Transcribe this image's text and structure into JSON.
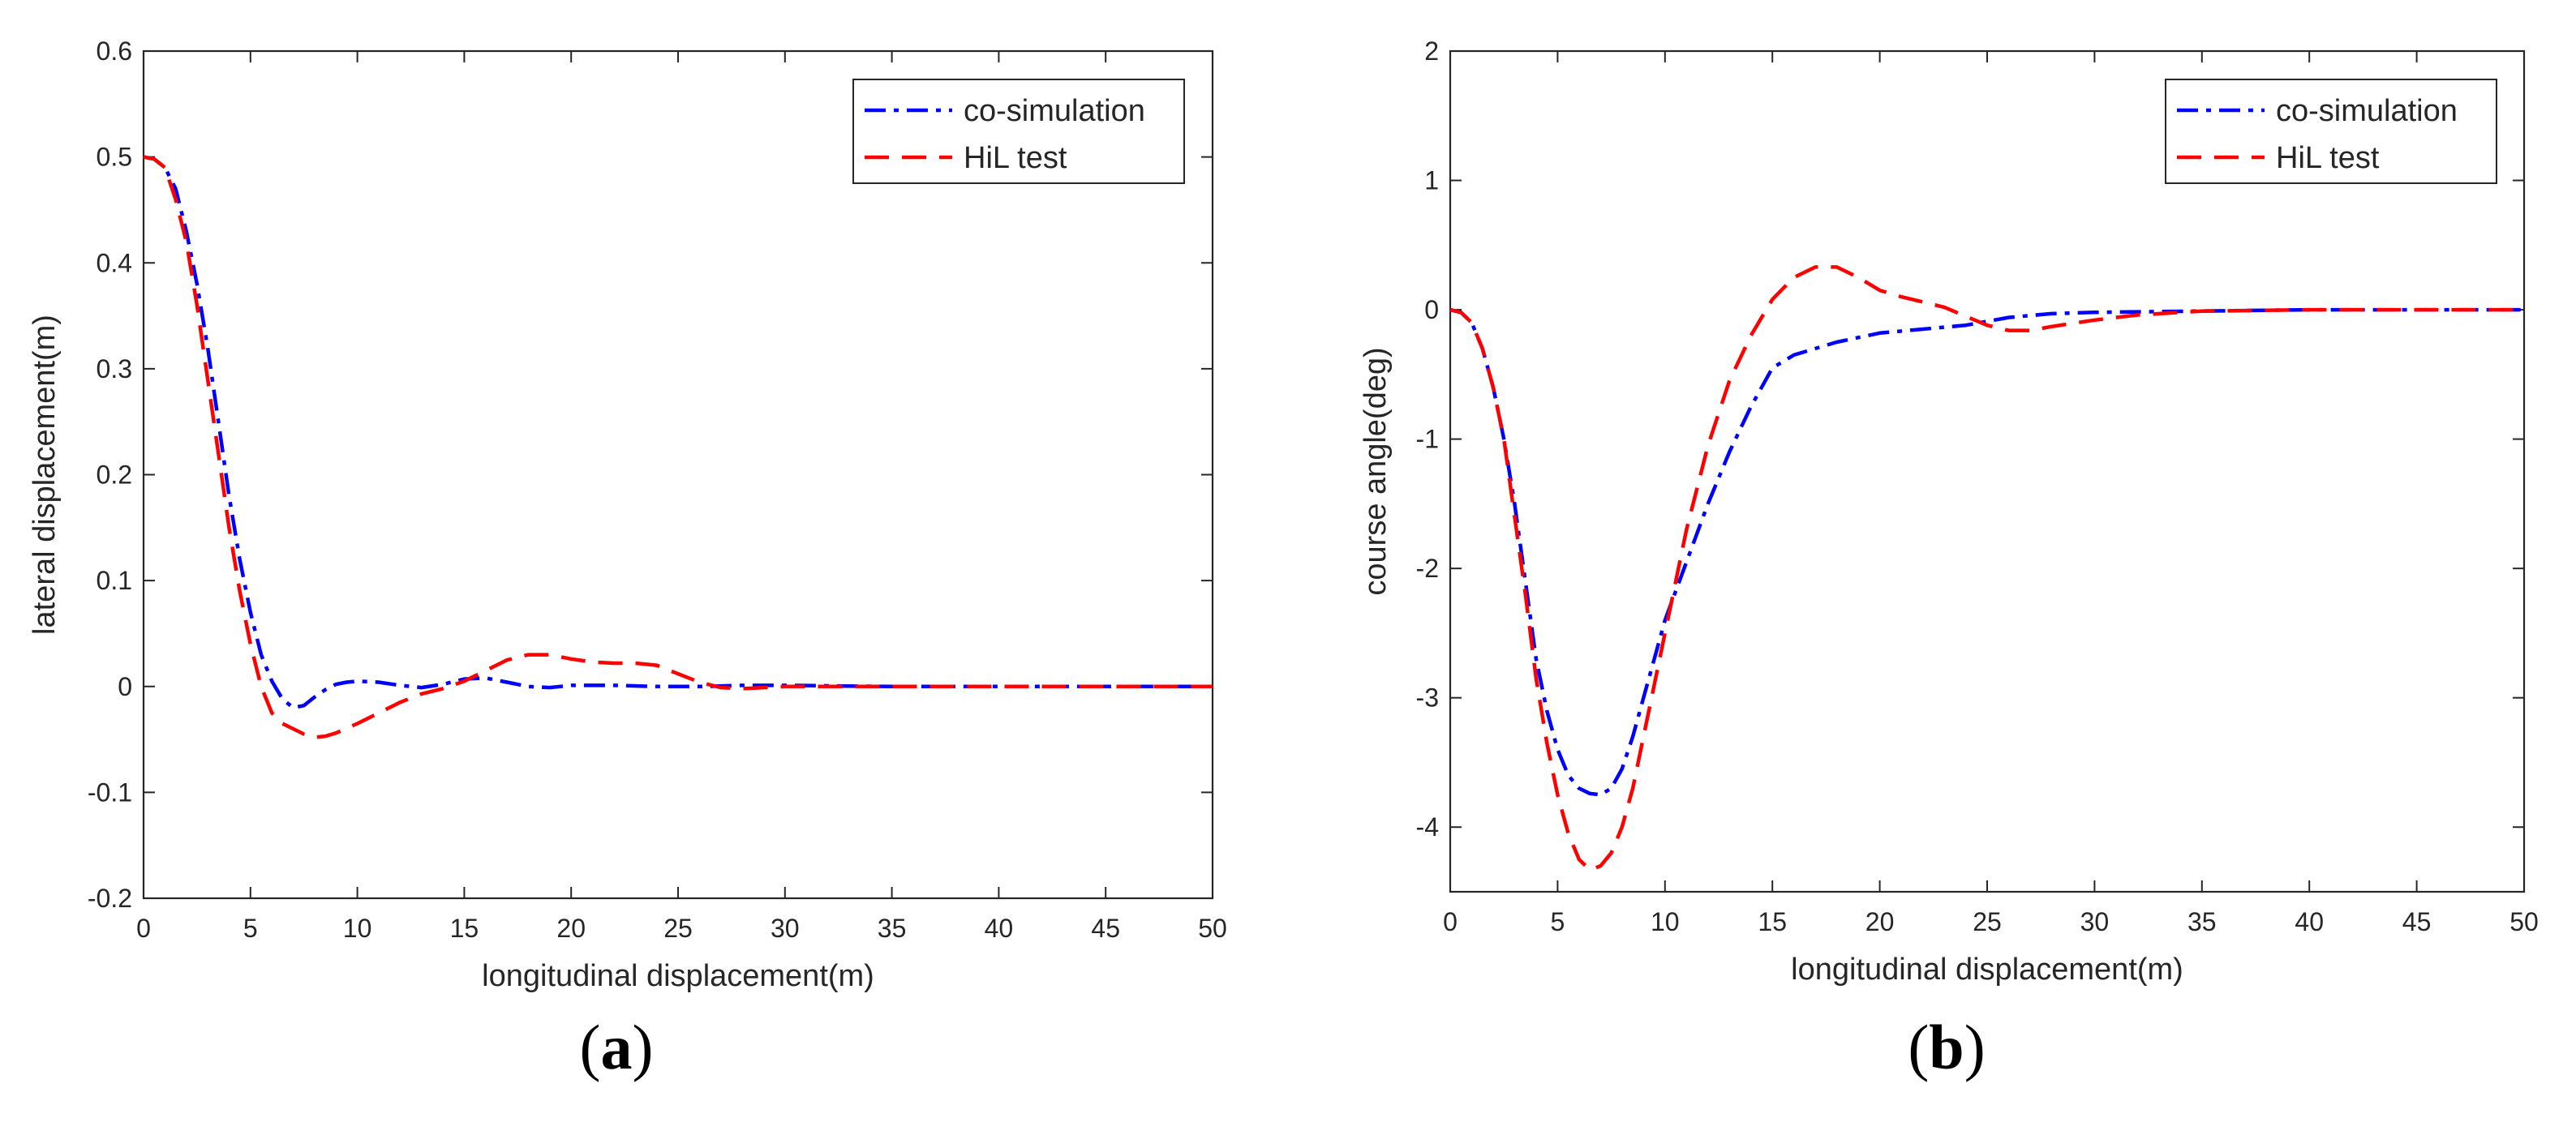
{
  "chart_data": [
    {
      "type": "line",
      "panel_label": {
        "open": "(",
        "letter": "a",
        "close": ")"
      },
      "xlabel": "longitudinal displacement(m)",
      "ylabel": "lateral displacement(m)",
      "xlim": [
        0,
        50
      ],
      "ylim": [
        -0.2,
        0.6
      ],
      "xticks": [
        0,
        5,
        10,
        15,
        20,
        25,
        30,
        35,
        40,
        45,
        50
      ],
      "yticks": [
        -0.2,
        -0.1,
        0,
        0.1,
        0.2,
        0.3,
        0.4,
        0.5,
        0.6
      ],
      "xtick_labels": [
        "0",
        "5",
        "10",
        "15",
        "20",
        "25",
        "30",
        "35",
        "40",
        "45",
        "50"
      ],
      "ytick_labels": [
        "-0.2",
        "-0.1",
        "0",
        "0.1",
        "0.2",
        "0.3",
        "0.4",
        "0.5",
        "0.6"
      ],
      "legend_position": "top-right",
      "series": [
        {
          "name": "co-simulation",
          "color": "#0000ff",
          "style": "dashdot",
          "x": [
            0,
            0.5,
            1,
            1.5,
            2,
            2.5,
            3,
            3.5,
            4,
            4.5,
            5,
            5.5,
            6,
            6.5,
            7,
            7.5,
            8,
            8.5,
            9,
            9.5,
            10,
            11,
            12,
            13,
            14,
            15,
            16,
            17,
            18,
            19,
            20,
            22,
            24,
            26,
            28,
            30,
            35,
            40,
            45,
            50
          ],
          "y": [
            0.5,
            0.498,
            0.49,
            0.47,
            0.43,
            0.38,
            0.32,
            0.25,
            0.18,
            0.12,
            0.07,
            0.03,
            0.005,
            -0.012,
            -0.02,
            -0.018,
            -0.01,
            -0.003,
            0.002,
            0.004,
            0.005,
            0.004,
            0.001,
            -0.001,
            0.002,
            0.007,
            0.008,
            0.004,
            0.0,
            -0.001,
            0.001,
            0.001,
            0.0,
            0.0,
            0.001,
            0.001,
            0.0,
            0.0,
            0.0,
            0.0
          ]
        },
        {
          "name": "HiL test",
          "color": "#ff0000",
          "style": "dashed",
          "x": [
            0,
            0.5,
            1,
            1.5,
            2,
            2.5,
            3,
            3.5,
            4,
            4.5,
            5,
            5.5,
            6,
            6.5,
            7,
            7.5,
            8,
            8.5,
            9,
            10,
            11,
            12,
            13,
            14,
            15,
            16,
            17,
            18,
            19,
            20,
            21,
            22,
            23,
            24,
            25,
            26,
            27,
            28,
            30,
            35,
            40,
            45,
            50
          ],
          "y": [
            0.5,
            0.498,
            0.49,
            0.46,
            0.42,
            0.36,
            0.29,
            0.22,
            0.15,
            0.09,
            0.04,
            0.0,
            -0.025,
            -0.035,
            -0.04,
            -0.045,
            -0.048,
            -0.047,
            -0.044,
            -0.035,
            -0.025,
            -0.015,
            -0.007,
            -0.002,
            0.005,
            0.015,
            0.025,
            0.03,
            0.03,
            0.026,
            0.023,
            0.022,
            0.022,
            0.02,
            0.012,
            0.004,
            -0.001,
            -0.002,
            0.0,
            0.0,
            0.0,
            0.0,
            0.0
          ]
        }
      ]
    },
    {
      "type": "line",
      "panel_label": {
        "open": "(",
        "letter": "b",
        "close": ")"
      },
      "xlabel": "longitudinal displacement(m)",
      "ylabel": "course angle(deg)",
      "xlim": [
        0,
        50
      ],
      "ylim": [
        -4.5,
        2
      ],
      "xticks": [
        0,
        5,
        10,
        15,
        20,
        25,
        30,
        35,
        40,
        45,
        50
      ],
      "yticks": [
        -4,
        -3,
        -2,
        -1,
        0,
        1,
        2
      ],
      "xtick_labels": [
        "0",
        "5",
        "10",
        "15",
        "20",
        "25",
        "30",
        "35",
        "40",
        "45",
        "50"
      ],
      "ytick_labels": [
        "-4",
        "-3",
        "-2",
        "-1",
        "0",
        "1",
        "2"
      ],
      "legend_position": "top-right",
      "series": [
        {
          "name": "co-simulation",
          "color": "#0000ff",
          "style": "dashdot",
          "x": [
            0,
            0.5,
            1,
            1.5,
            2,
            2.5,
            3,
            3.5,
            4,
            4.5,
            5,
            5.5,
            6,
            6.5,
            7,
            7.5,
            8,
            8.5,
            9,
            9.5,
            10,
            11,
            12,
            13,
            14,
            15,
            16,
            17,
            18,
            20,
            22,
            24,
            26,
            28,
            30,
            35,
            40,
            45,
            50
          ],
          "y": [
            0,
            -0.02,
            -0.1,
            -0.3,
            -0.6,
            -1.0,
            -1.5,
            -2.1,
            -2.7,
            -3.1,
            -3.4,
            -3.6,
            -3.7,
            -3.74,
            -3.75,
            -3.7,
            -3.55,
            -3.3,
            -3.0,
            -2.7,
            -2.4,
            -1.95,
            -1.5,
            -1.1,
            -0.75,
            -0.45,
            -0.35,
            -0.3,
            -0.25,
            -0.18,
            -0.15,
            -0.12,
            -0.06,
            -0.03,
            -0.02,
            -0.01,
            0.0,
            0.0,
            0.0
          ]
        },
        {
          "name": "HiL test",
          "color": "#ff0000",
          "style": "dashed",
          "x": [
            0,
            0.5,
            1,
            1.5,
            2,
            2.5,
            3,
            3.5,
            4,
            4.5,
            5,
            5.5,
            6,
            6.5,
            7,
            7.5,
            8,
            8.5,
            9,
            9.5,
            10,
            11,
            12,
            13,
            14,
            15,
            16,
            17,
            18,
            19,
            20,
            21,
            22,
            23,
            24,
            25,
            26,
            27,
            28,
            30,
            32,
            35,
            40,
            45,
            50
          ],
          "y": [
            0,
            -0.02,
            -0.1,
            -0.3,
            -0.6,
            -1.0,
            -1.6,
            -2.2,
            -2.85,
            -3.35,
            -3.75,
            -4.05,
            -4.25,
            -4.33,
            -4.3,
            -4.2,
            -4.0,
            -3.7,
            -3.3,
            -2.9,
            -2.5,
            -1.7,
            -1.05,
            -0.55,
            -0.2,
            0.08,
            0.25,
            0.33,
            0.33,
            0.25,
            0.15,
            0.1,
            0.06,
            0.02,
            -0.05,
            -0.12,
            -0.16,
            -0.16,
            -0.13,
            -0.08,
            -0.04,
            -0.01,
            0.0,
            0.0,
            0.0
          ]
        }
      ]
    }
  ]
}
